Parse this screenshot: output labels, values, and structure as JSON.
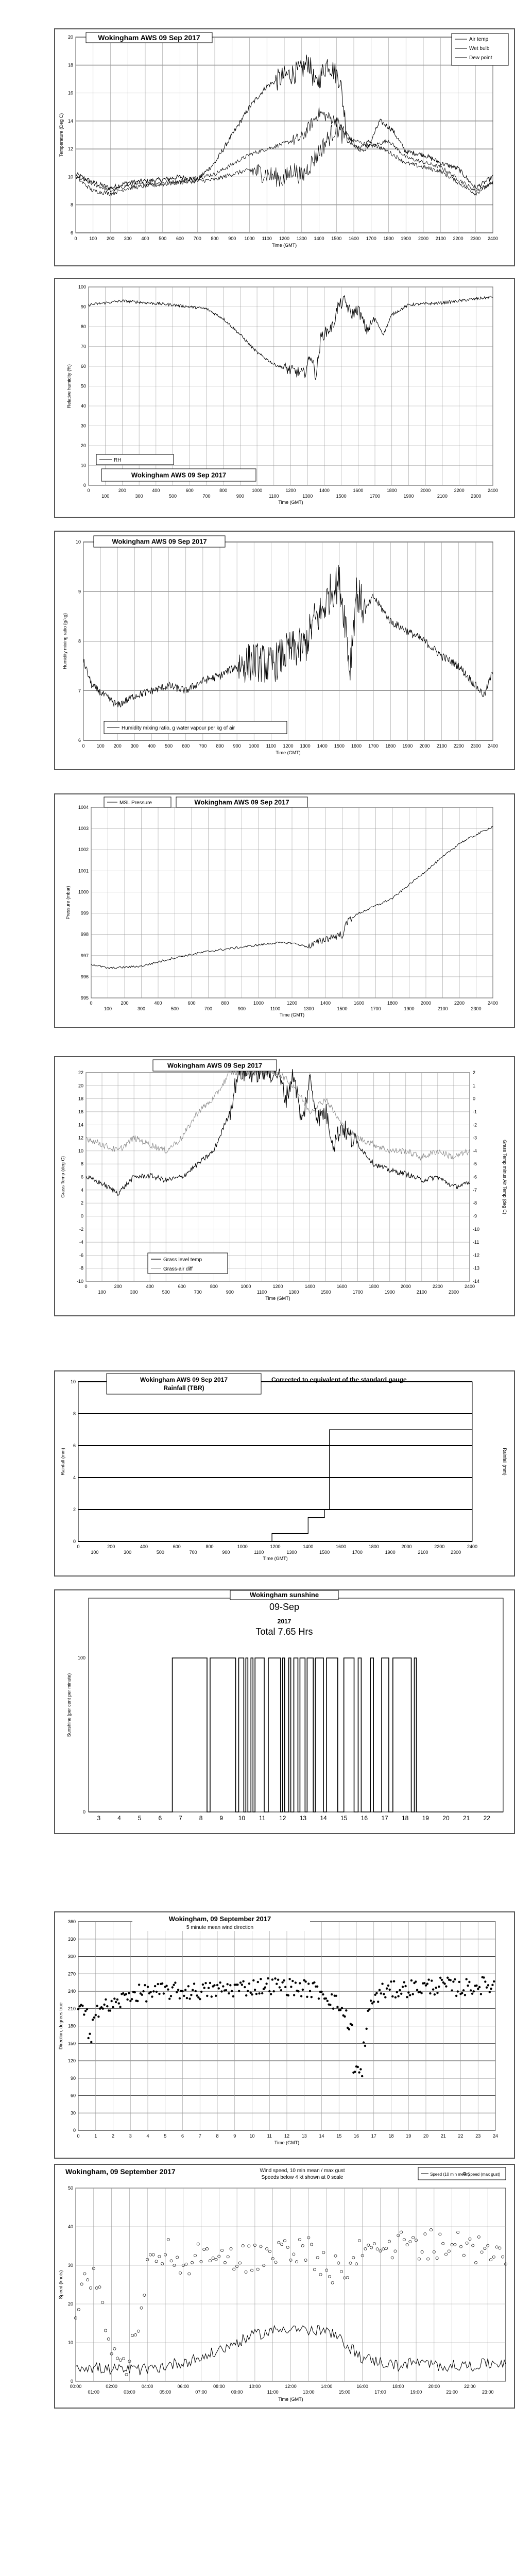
{
  "charts": [
    {
      "id": "temp",
      "type": "line",
      "title": "Wokingham AWS 09 Sep 2017",
      "xlabel": "Time (GMT)",
      "ylabel": "Temperature (Deg C)",
      "ylim": [
        6,
        20
      ],
      "yticks": [
        6,
        8,
        10,
        12,
        14,
        16,
        18,
        20
      ],
      "xticks": [
        "0",
        "100",
        "200",
        "300",
        "400",
        "500",
        "600",
        "700",
        "800",
        "900",
        "1000",
        "1100",
        "1200",
        "1300",
        "1400",
        "1500",
        "1600",
        "1700",
        "1800",
        "1900",
        "2000",
        "2100",
        "2200",
        "2300",
        "2400"
      ],
      "legend": [
        "Air temp",
        "Wet bulb",
        "Dew point"
      ]
    },
    {
      "id": "rh",
      "type": "line",
      "title": "Wokingham AWS 09 Sep 2017",
      "xlabel": "Time (GMT)",
      "ylabel": "Relative humidity (%)",
      "ylim": [
        0,
        100
      ],
      "yticks": [
        0,
        10,
        20,
        30,
        40,
        50,
        60,
        70,
        80,
        90,
        100
      ],
      "xticks_top": [
        "0",
        "200",
        "400",
        "600",
        "800",
        "1000",
        "1200",
        "1400",
        "1600",
        "1800",
        "2000",
        "2200",
        "2400"
      ],
      "xticks_bottom": [
        "100",
        "300",
        "500",
        "700",
        "900",
        "1100",
        "1300",
        "1500",
        "1700",
        "1900",
        "2100",
        "2300"
      ],
      "legend": [
        "RH"
      ]
    },
    {
      "id": "mix",
      "type": "line",
      "title": "Wokingham AWS 09 Sep 2017",
      "xlabel": "Time (GMT)",
      "ylabel": "Humidity mixing ratio (g/kg)",
      "ylim": [
        6,
        10
      ],
      "yticks": [
        6,
        7,
        8,
        9,
        10
      ],
      "xticks": [
        "0",
        "100",
        "200",
        "300",
        "400",
        "500",
        "600",
        "700",
        "800",
        "900",
        "1000",
        "1100",
        "1200",
        "1300",
        "1400",
        "1500",
        "1600",
        "1700",
        "1800",
        "1900",
        "2000",
        "2100",
        "2200",
        "2300",
        "2400"
      ],
      "legend": [
        "Humidity mixing ratio, g water vapour per kg of air"
      ]
    },
    {
      "id": "pres",
      "type": "line",
      "title": "Wokingham AWS 09 Sep 2017",
      "xlabel": "Time (GMT)",
      "ylabel": "Pressure (mbar)",
      "ylim": [
        995,
        1004
      ],
      "yticks": [
        995,
        996,
        997,
        998,
        999,
        1000,
        1001,
        1002,
        1003,
        1004
      ],
      "xticks_top": [
        "0",
        "200",
        "400",
        "600",
        "800",
        "1000",
        "1200",
        "1400",
        "1600",
        "1800",
        "2000",
        "2200",
        "2400"
      ],
      "xticks_bottom": [
        "100",
        "300",
        "500",
        "700",
        "900",
        "1100",
        "1300",
        "1500",
        "1700",
        "1900",
        "2100",
        "2300"
      ],
      "legend": [
        "MSL Pressure"
      ]
    },
    {
      "id": "grass",
      "type": "line",
      "title": "Wokingham AWS 09 Sep 2017",
      "xlabel": "Time (GMT)",
      "ylabel": "Grass Temp (deg C)",
      "ylabel2": "Grass Temp minus Air Temp (deg C)",
      "ylim": [
        -10,
        22
      ],
      "yticks": [
        -10,
        -8,
        -6,
        -4,
        -2,
        0,
        2,
        4,
        6,
        8,
        10,
        12,
        14,
        16,
        18,
        20,
        22
      ],
      "yticks2": [
        -14,
        -13,
        -12,
        -11,
        -10,
        -9,
        -8,
        -7,
        -6,
        -5,
        -4,
        -3,
        -2,
        -1,
        0,
        1,
        2
      ],
      "xticks_top": [
        "0",
        "200",
        "400",
        "600",
        "800",
        "1000",
        "1200",
        "1400",
        "1600",
        "1800",
        "2000",
        "2200",
        "2400"
      ],
      "xticks_bottom": [
        "100",
        "300",
        "500",
        "700",
        "900",
        "1100",
        "1300",
        "1500",
        "1700",
        "1900",
        "2100",
        "2300"
      ],
      "legend": [
        "Grass level temp",
        "Grass-air diff"
      ]
    },
    {
      "id": "rain",
      "type": "line",
      "title": "Wokingham AWS 09 Sep 2017",
      "subtitle": "Rainfall (TBR)",
      "note": "Corrected to equivalent of the standard gauge",
      "xlabel": "Time (GMT)",
      "ylabel": "Rainfall (mm)",
      "ylabel2": "Rainfall (mm)",
      "ylim": [
        0,
        10
      ],
      "yticks": [
        0,
        2,
        4,
        6,
        8,
        10
      ],
      "xticks_top": [
        "0",
        "200",
        "400",
        "600",
        "800",
        "1000",
        "1200",
        "1400",
        "1600",
        "1800",
        "2000",
        "2200",
        "2400"
      ],
      "xticks_bottom": [
        "100",
        "300",
        "500",
        "700",
        "900",
        "1100",
        "1300",
        "1500",
        "1700",
        "1900",
        "2100",
        "2300"
      ],
      "x": [
        0,
        1180,
        1180,
        1400,
        1400,
        1500,
        1500,
        1530,
        1530,
        2400
      ],
      "y": [
        0,
        0,
        0.5,
        0.5,
        1.5,
        1.5,
        2.0,
        2.0,
        7.0,
        7.0
      ]
    },
    {
      "id": "sun",
      "type": "line",
      "title": "Wokingham sunshine",
      "date": "09-Sep",
      "year": "2017",
      "total": "Total 7.65 Hrs",
      "ylabel": "Sunshine (per cent per minute)",
      "ylim": [
        0,
        100
      ],
      "yticks": [
        0,
        100
      ],
      "xticks": [
        "3",
        "4",
        "5",
        "6",
        "7",
        "8",
        "9",
        "10",
        "11",
        "12",
        "13",
        "14",
        "15",
        "16",
        "17",
        "18",
        "19",
        "20",
        "21",
        "22"
      ]
    },
    {
      "id": "dir",
      "type": "scatter",
      "title": "Wokingham,  09 September 2017",
      "subtitle": "5 minute mean wind direction",
      "xlabel": "Time (GMT)",
      "ylabel": "Direction, degrees true",
      "ylim": [
        0,
        360
      ],
      "yticks": [
        0,
        30,
        60,
        90,
        120,
        150,
        180,
        210,
        240,
        270,
        300,
        330,
        360
      ],
      "xticks": [
        "0",
        "1",
        "2",
        "3",
        "4",
        "5",
        "6",
        "7",
        "8",
        "9",
        "10",
        "11",
        "12",
        "13",
        "14",
        "15",
        "16",
        "17",
        "18",
        "19",
        "20",
        "21",
        "22",
        "23",
        "24"
      ]
    },
    {
      "id": "speed",
      "type": "line",
      "title": "Wokingham,  09 September 2017",
      "subtitle": "Wind speed, 10 min mean / max gust",
      "subtitle2": "Speeds below 4 kt shown at 0 scale",
      "xlabel": "Time (GMT)",
      "ylabel": "Speed (knots)",
      "ylim": [
        0,
        50
      ],
      "yticks": [
        0,
        10,
        20,
        30,
        40,
        50
      ],
      "xticks_top": [
        "00:00",
        "02:00",
        "04:00",
        "06:00",
        "08:00",
        "10:00",
        "12:00",
        "14:00",
        "16:00",
        "18:00",
        "20:00",
        "22:00"
      ],
      "xticks_bottom": [
        "01:00",
        "03:00",
        "05:00",
        "07:00",
        "09:00",
        "11:00",
        "13:00",
        "15:00",
        "17:00",
        "19:00",
        "21:00",
        "23:00"
      ],
      "legend": [
        "Speed (10 min mean)",
        "Speed (max gust)"
      ]
    }
  ]
}
